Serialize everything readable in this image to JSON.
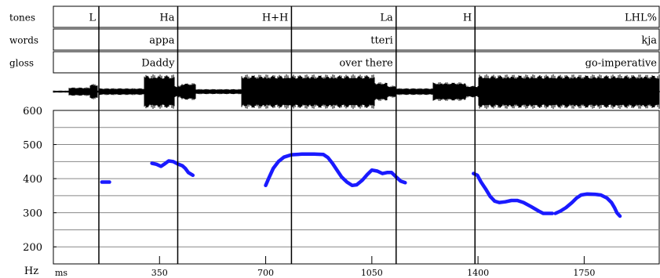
{
  "tiers": [
    {
      "name": "tones",
      "labels": [
        {
          "text": "L",
          "start": 0,
          "end": 150
        },
        {
          "text": "Ha",
          "start": 150,
          "end": 410
        },
        {
          "text": "H+H",
          "start": 410,
          "end": 785
        },
        {
          "text": "La",
          "start": 785,
          "end": 1130
        },
        {
          "text": "H",
          "start": 1130,
          "end": 1390
        },
        {
          "text": "LHL%",
          "start": 1390,
          "end": 2000
        }
      ]
    },
    {
      "name": "words",
      "labels": [
        {
          "text": "",
          "start": 0,
          "end": 150
        },
        {
          "text": "appa",
          "start": 150,
          "end": 410
        },
        {
          "text": "",
          "start": 410,
          "end": 785
        },
        {
          "text": "tteri",
          "start": 785,
          "end": 1130
        },
        {
          "text": "",
          "start": 1130,
          "end": 1390
        },
        {
          "text": "kja",
          "start": 1390,
          "end": 2000
        }
      ]
    },
    {
      "name": "gloss",
      "labels": [
        {
          "text": "",
          "start": 0,
          "end": 150
        },
        {
          "text": "Daddy",
          "start": 150,
          "end": 410
        },
        {
          "text": "",
          "start": 410,
          "end": 785
        },
        {
          "text": "over there",
          "start": 785,
          "end": 1130
        },
        {
          "text": "",
          "start": 1130,
          "end": 1390
        },
        {
          "text": "go-imperative",
          "start": 1390,
          "end": 2000
        }
      ]
    }
  ],
  "boundaries_ms": [
    150,
    410,
    785,
    1130,
    1390
  ],
  "chart_data": {
    "type": "scatter",
    "xlabel": "ms",
    "ylabel": "Hz",
    "xlim": [
      0,
      2000
    ],
    "ylim": [
      150,
      600
    ],
    "xticks": [
      350,
      700,
      1050,
      1400,
      1750
    ],
    "yticks": [
      200,
      300,
      400,
      500,
      600
    ],
    "ygrid": [
      200,
      250,
      300,
      350,
      400,
      450,
      500,
      550
    ],
    "pitch_color": "#1a1aff",
    "pitch_segments": [
      [
        [
          160,
          390
        ],
        [
          185,
          390
        ]
      ],
      [
        [
          325,
          445
        ],
        [
          340,
          442
        ],
        [
          355,
          436
        ],
        [
          365,
          442
        ],
        [
          380,
          452
        ],
        [
          395,
          450
        ],
        [
          410,
          443
        ],
        [
          425,
          438
        ],
        [
          435,
          430
        ],
        [
          445,
          418
        ],
        [
          460,
          410
        ]
      ],
      [
        [
          700,
          380
        ],
        [
          712,
          405
        ],
        [
          725,
          430
        ],
        [
          742,
          450
        ],
        [
          760,
          463
        ],
        [
          785,
          470
        ],
        [
          820,
          472
        ],
        [
          860,
          472
        ],
        [
          890,
          471
        ],
        [
          905,
          462
        ],
        [
          920,
          445
        ],
        [
          935,
          425
        ],
        [
          950,
          405
        ],
        [
          968,
          390
        ],
        [
          985,
          380
        ],
        [
          1000,
          382
        ],
        [
          1018,
          395
        ],
        [
          1035,
          412
        ],
        [
          1050,
          425
        ],
        [
          1068,
          422
        ],
        [
          1085,
          415
        ],
        [
          1100,
          418
        ],
        [
          1115,
          418
        ],
        [
          1130,
          405
        ],
        [
          1145,
          393
        ],
        [
          1160,
          388
        ]
      ],
      [
        [
          1385,
          415
        ],
        [
          1398,
          410
        ],
        [
          1410,
          390
        ],
        [
          1425,
          370
        ],
        [
          1440,
          348
        ],
        [
          1455,
          334
        ],
        [
          1470,
          330
        ],
        [
          1490,
          332
        ],
        [
          1510,
          336
        ],
        [
          1530,
          336
        ],
        [
          1550,
          330
        ],
        [
          1575,
          318
        ],
        [
          1600,
          305
        ],
        [
          1615,
          298
        ],
        [
          1630,
          298
        ],
        [
          1645,
          298
        ]
      ],
      [
        [
          1655,
          298
        ],
        [
          1672,
          305
        ],
        [
          1690,
          315
        ],
        [
          1710,
          330
        ],
        [
          1725,
          343
        ],
        [
          1740,
          352
        ],
        [
          1760,
          355
        ],
        [
          1785,
          354
        ],
        [
          1805,
          352
        ],
        [
          1825,
          343
        ],
        [
          1840,
          330
        ],
        [
          1850,
          315
        ],
        [
          1858,
          300
        ],
        [
          1868,
          290
        ]
      ]
    ]
  }
}
